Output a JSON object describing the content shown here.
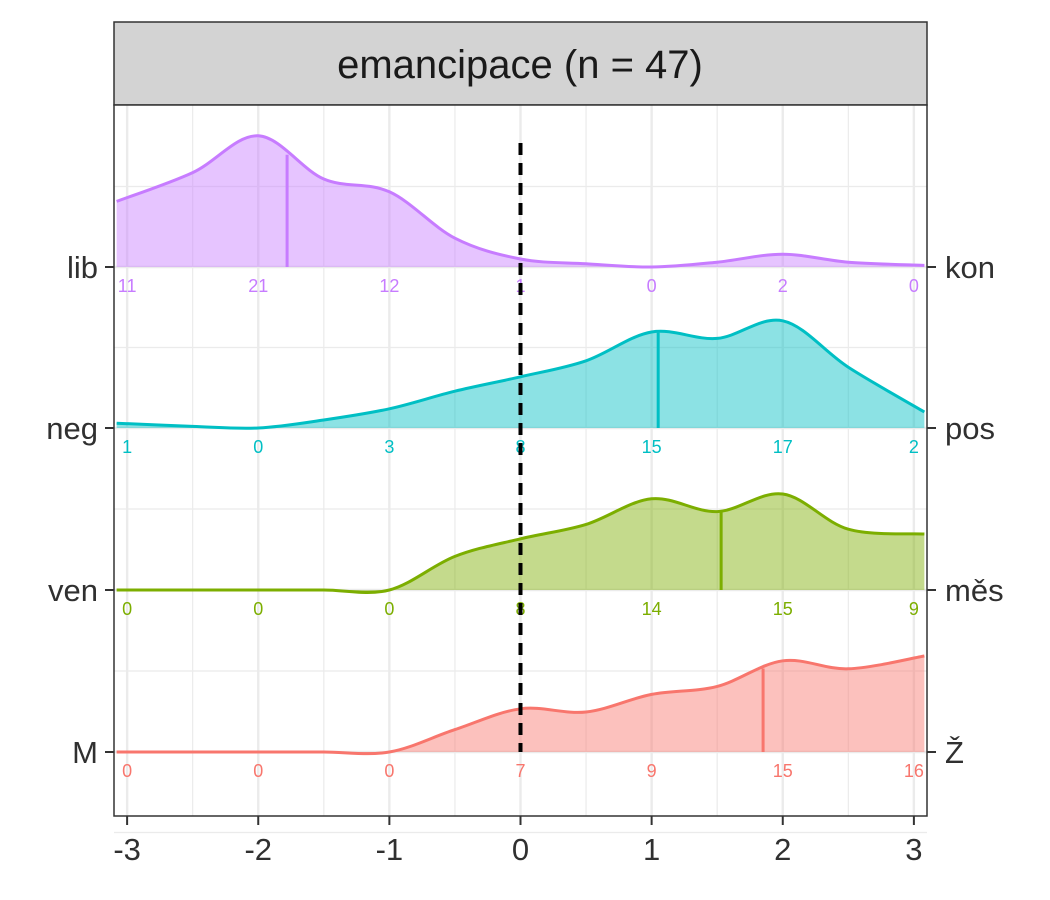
{
  "chart_data": {
    "type": "ridgeline",
    "title": "emancipace (n = 47)",
    "xlim": [
      -3.1,
      3.1
    ],
    "x_ticks": [
      "-3",
      "-2",
      "-1",
      "0",
      "1",
      "2",
      "3"
    ],
    "x_tick_values": [
      -3,
      -2,
      -1,
      0,
      1,
      2,
      3
    ],
    "reference_line_x": 0,
    "grid": true,
    "density_x": [
      -3.08,
      -2.5,
      -2.0,
      -1.5,
      -1.0,
      -0.5,
      0.0,
      0.5,
      1.0,
      1.5,
      2.0,
      2.5,
      3.08
    ],
    "count_positions": [
      -3,
      -2,
      -1,
      0,
      1,
      2,
      3
    ],
    "series": [
      {
        "left_label": "lib",
        "right_label": "kon",
        "color": "#C77CFF",
        "counts": [
          "11",
          "21",
          "12",
          "1",
          "0",
          "2",
          "0"
        ],
        "mean": -1.78,
        "density": [
          0.41,
          0.59,
          0.82,
          0.55,
          0.47,
          0.18,
          0.05,
          0.02,
          0.0,
          0.03,
          0.08,
          0.03,
          0.01
        ]
      },
      {
        "left_label": "neg",
        "right_label": "pos",
        "color": "#00BFC4",
        "counts": [
          "1",
          "0",
          "3",
          "8",
          "15",
          "17",
          "2"
        ],
        "mean": 1.05,
        "density": [
          0.03,
          0.01,
          0.0,
          0.05,
          0.12,
          0.23,
          0.32,
          0.42,
          0.6,
          0.56,
          0.67,
          0.38,
          0.1
        ]
      },
      {
        "left_label": "ven",
        "right_label": "měs",
        "color": "#7CAE00",
        "counts": [
          "0",
          "0",
          "0",
          "8",
          "14",
          "15",
          "9"
        ],
        "mean": 1.53,
        "density": [
          0.0,
          0.0,
          0.0,
          0.0,
          0.0,
          0.21,
          0.32,
          0.41,
          0.57,
          0.49,
          0.6,
          0.38,
          0.35
        ]
      },
      {
        "left_label": "M",
        "right_label": "Ž",
        "color": "#F8766D",
        "counts": [
          "0",
          "0",
          "0",
          "7",
          "9",
          "15",
          "16"
        ],
        "mean": 1.85,
        "density": [
          0.0,
          0.0,
          0.0,
          0.0,
          0.0,
          0.14,
          0.27,
          0.25,
          0.36,
          0.41,
          0.57,
          0.52,
          0.6
        ]
      }
    ]
  }
}
